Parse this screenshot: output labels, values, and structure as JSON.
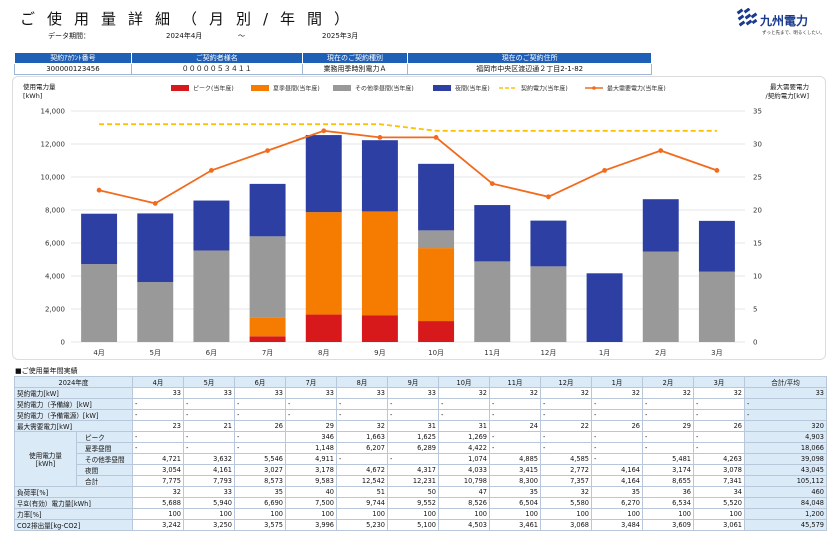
{
  "header": {
    "title": "ご使用量詳細（月別/年間）",
    "period_label": "データ期間：",
    "period_start": "2024年4月",
    "period_sep": "〜",
    "period_end": "2025年3月"
  },
  "logo": {
    "name": "九州電力",
    "tagline": "ずっと先まで、明るくしたい。",
    "color": "#1a3a8c"
  },
  "info_table": {
    "headers": [
      "契約ｱｶｳﾝﾄ番号",
      "ご契約者様名",
      "現在のご契約種別",
      "現在のご契約住所"
    ],
    "values": [
      "300000123456",
      "０００００５３４１１",
      "業務用季時別電力Ａ",
      "福岡市中央区渡辺通２丁目2-1-82"
    ]
  },
  "chart_data": {
    "type": "bar",
    "stacked": true,
    "categories": [
      "4月",
      "5月",
      "6月",
      "7月",
      "8月",
      "9月",
      "10月",
      "11月",
      "12月",
      "1月",
      "2月",
      "3月"
    ],
    "ylabel_left": "使用電力量\n[kWh]",
    "ylabel_right": "最大需要電力\n/契約電力[kW]",
    "ylim_left": [
      0,
      14000
    ],
    "yticks_left": [
      "0",
      "2,000",
      "4,000",
      "6,000",
      "8,000",
      "10,000",
      "12,000",
      "14,000"
    ],
    "ylim_right": [
      0,
      35
    ],
    "yticks_right": [
      "0",
      "5",
      "10",
      "15",
      "20",
      "25",
      "30",
      "35"
    ],
    "grid": true,
    "legend_position": "top",
    "series": [
      {
        "name": "ピーク(当年度)",
        "kind": "bar",
        "color": "#d7191c",
        "values": [
          0,
          0,
          0,
          346,
          1663,
          1625,
          1269,
          0,
          0,
          0,
          0,
          0
        ]
      },
      {
        "name": "夏季昼間(当年度)",
        "kind": "bar",
        "color": "#f57c00",
        "values": [
          0,
          0,
          0,
          1148,
          6207,
          6289,
          4422,
          0,
          0,
          0,
          0,
          0
        ]
      },
      {
        "name": "その他季昼間(当年度)",
        "kind": "bar",
        "color": "#999999",
        "values": [
          4721,
          3632,
          5546,
          4911,
          0,
          0,
          1074,
          4885,
          4585,
          0,
          5481,
          4263
        ]
      },
      {
        "name": "夜間(当年度)",
        "kind": "bar",
        "color": "#2e3fa3",
        "values": [
          3054,
          4161,
          3027,
          3178,
          4672,
          4317,
          4033,
          3415,
          2772,
          4164,
          3174,
          3078
        ]
      },
      {
        "name": "契約電力(当年度)",
        "kind": "dashed-line",
        "color": "#ffc000",
        "axis": "right",
        "values": [
          33,
          33,
          33,
          33,
          33,
          33,
          32,
          32,
          32,
          32,
          32,
          32
        ]
      },
      {
        "name": "最大需要電力(当年度)",
        "kind": "line",
        "color": "#f26b1d",
        "axis": "right",
        "values": [
          23,
          21,
          26,
          29,
          32,
          31,
          31,
          24,
          22,
          26,
          29,
          26
        ]
      }
    ]
  },
  "usage_table": {
    "section_label": "■ご使用量年間実績",
    "year_label": "2024年度",
    "months": [
      "4月",
      "5月",
      "6月",
      "7月",
      "8月",
      "9月",
      "10月",
      "11月",
      "12月",
      "1月",
      "2月",
      "3月"
    ],
    "total_label": "合計/平均",
    "group_label": "使用電力量\n[kWh]",
    "rows": [
      {
        "label": "契約電力[kW]",
        "values": [
          "33",
          "33",
          "33",
          "33",
          "33",
          "33",
          "32",
          "32",
          "32",
          "32",
          "32",
          "32"
        ],
        "total": "33"
      },
      {
        "label": "契約電力（予備線）[kW]",
        "values": [
          "-",
          "-",
          "-",
          "-",
          "-",
          "-",
          "-",
          "-",
          "-",
          "-",
          "-",
          "-"
        ],
        "total": "-"
      },
      {
        "label": "契約電力（予備電源）[kW]",
        "values": [
          "-",
          "-",
          "-",
          "-",
          "-",
          "-",
          "-",
          "-",
          "-",
          "-",
          "-",
          "-"
        ],
        "total": "-"
      },
      {
        "label": "最大需要電力[kW]",
        "values": [
          "23",
          "21",
          "26",
          "29",
          "32",
          "31",
          "31",
          "24",
          "22",
          "26",
          "29",
          "26"
        ],
        "total": "320"
      },
      {
        "label": "ピーク",
        "group": true,
        "values": [
          "-",
          "-",
          "-",
          "346",
          "1,663",
          "1,625",
          "1,269",
          "-",
          "-",
          "-",
          "-",
          "-"
        ],
        "total": "4,903"
      },
      {
        "label": "夏季昼間",
        "group": true,
        "values": [
          "-",
          "-",
          "-",
          "1,148",
          "6,207",
          "6,289",
          "4,422",
          "-",
          "-",
          "-",
          "-",
          "-"
        ],
        "total": "18,066"
      },
      {
        "label": "その他季昼間",
        "group": true,
        "values": [
          "4,721",
          "3,632",
          "5,546",
          "4,911",
          "-",
          "-",
          "1,074",
          "4,885",
          "4,585",
          "-",
          "5,481",
          "4,263"
        ],
        "total": "39,098"
      },
      {
        "label": "夜間",
        "group": true,
        "values": [
          "3,054",
          "4,161",
          "3,027",
          "3,178",
          "4,672",
          "4,317",
          "4,033",
          "3,415",
          "2,772",
          "4,164",
          "3,174",
          "3,078"
        ],
        "total": "43,045"
      },
      {
        "label": "合計",
        "group": true,
        "values": [
          "7,775",
          "7,793",
          "8,573",
          "9,583",
          "12,542",
          "12,231",
          "10,798",
          "8,300",
          "7,357",
          "4,164",
          "8,655",
          "7,341"
        ],
        "total": "105,112"
      },
      {
        "label": "負荷率[%]",
        "values": [
          "32",
          "33",
          "35",
          "40",
          "51",
          "50",
          "47",
          "35",
          "32",
          "35",
          "36",
          "34"
        ],
        "total": "460"
      },
      {
        "label": "무효(有効）電力量[kWh]",
        "values": [
          "5,688",
          "5,940",
          "6,690",
          "7,500",
          "9,744",
          "9,552",
          "8,526",
          "6,504",
          "5,580",
          "6,270",
          "6,534",
          "5,520"
        ],
        "total": "84,048"
      },
      {
        "label": "力率[%]",
        "values": [
          "100",
          "100",
          "100",
          "100",
          "100",
          "100",
          "100",
          "100",
          "100",
          "100",
          "100",
          "100"
        ],
        "total": "1,200"
      },
      {
        "label": "CO2排出量[kg-CO2]",
        "values": [
          "3,242",
          "3,250",
          "3,575",
          "3,996",
          "5,230",
          "5,100",
          "4,503",
          "3,461",
          "3,068",
          "3,484",
          "3,609",
          "3,061"
        ],
        "total": "45,579"
      }
    ]
  }
}
